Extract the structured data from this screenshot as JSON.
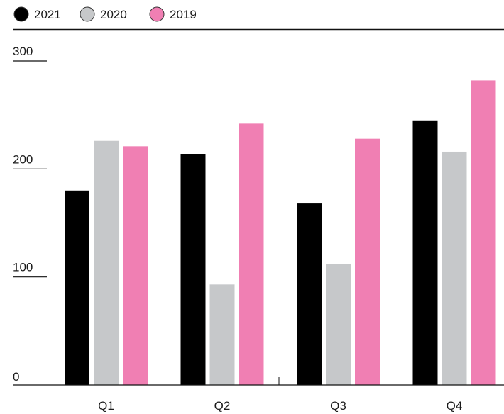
{
  "chart_data": {
    "type": "bar",
    "categories": [
      "Q1",
      "Q2",
      "Q3",
      "Q4"
    ],
    "series": [
      {
        "name": "2021",
        "color": "#000000",
        "values": [
          180,
          214,
          168,
          245
        ]
      },
      {
        "name": "2020",
        "color": "#c6c8ca",
        "values": [
          226,
          93,
          112,
          216
        ]
      },
      {
        "name": "2019",
        "color": "#f07fb3",
        "values": [
          221,
          242,
          228,
          282
        ]
      }
    ],
    "title": "",
    "xlabel": "",
    "ylabel": "",
    "ylim": [
      0,
      300
    ],
    "yticks": [
      "0",
      "100",
      "200",
      "300"
    ],
    "grid": false,
    "legend": "top-left"
  }
}
